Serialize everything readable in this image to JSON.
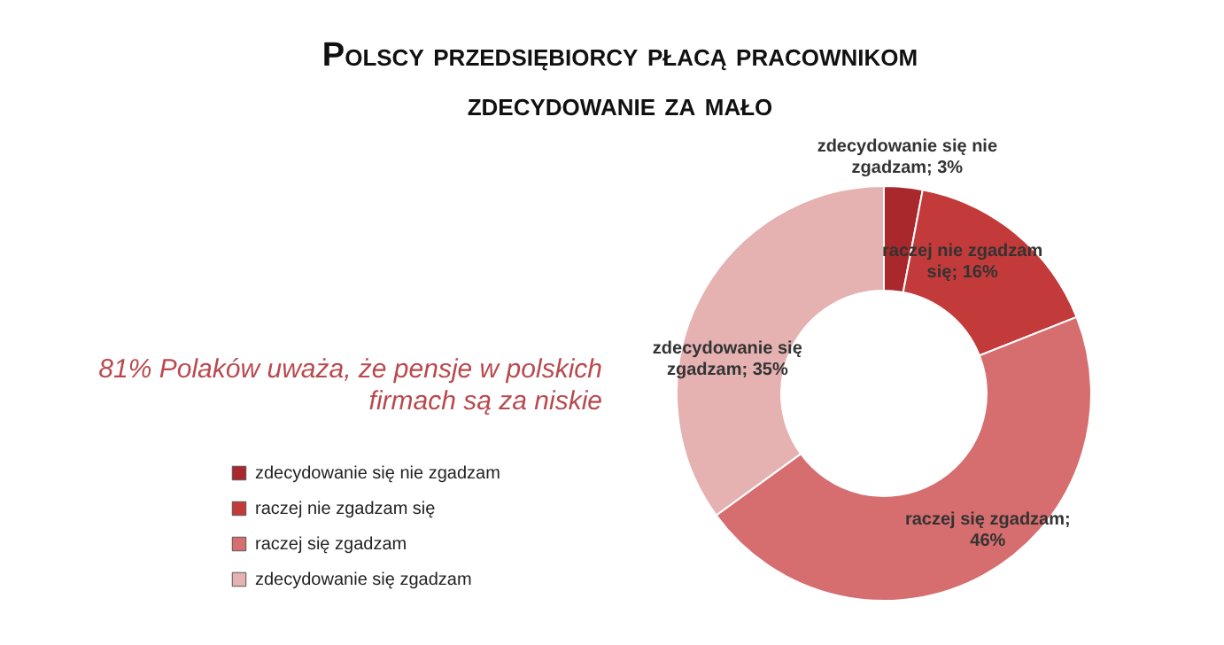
{
  "chart_data": {
    "type": "donut",
    "title": "Polscy przedsiębiorcy płacą pracownikom zdecydowanie za mało",
    "annotations": [
      "81% Polaków uważa, że pensje w polskich firmach są za niskie"
    ],
    "categories": [
      "zdecydowanie się nie zgadzam",
      "raczej nie zgadzam się",
      "raczej się zgadzam",
      "zdecydowanie się zgadzam"
    ],
    "values": [
      3,
      16,
      46,
      35
    ],
    "colors": [
      "#a8282c",
      "#c23a3a",
      "#d66d6e",
      "#e5b1b1"
    ],
    "value_labels": [
      "zdecydowanie się nie zgadzam; 3%",
      "raczej nie zgadzam się; 16%",
      "raczej się zgadzam; 46%",
      "zdecydowanie się zgadzam; 35%"
    ],
    "legend": "left"
  }
}
